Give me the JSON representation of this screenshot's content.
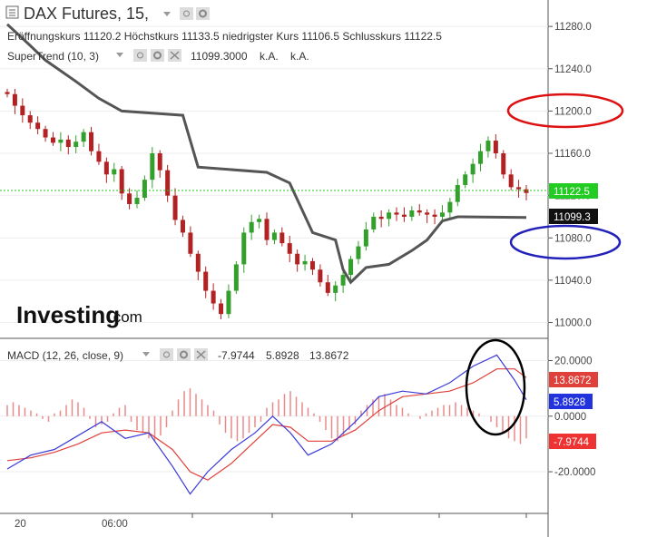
{
  "header": {
    "title": "DAX Futures, 15,",
    "ohlc_text": "Eröffnungskurs 11120.2  Höchstkurs 11133.5  niedrigster Kurs 11106.5  Schlusskurs 11122.5",
    "supertrend_label": "SuperTrend (10, 3)",
    "supertrend_value": "11099.3000",
    "supertrend_na1": "k.A.",
    "supertrend_na2": "k.A."
  },
  "logo": {
    "main": "Investing",
    "sub": ".com"
  },
  "macd_header": {
    "label": "MACD (12, 26, close, 9)",
    "value1": "-7.9744",
    "value2": "5.8928",
    "value3": "13.8672"
  },
  "tags": {
    "last_price": "11122.5",
    "supertrend": "11099.3",
    "signal": "13.8672",
    "macd": "5.8928",
    "hist": "-7.9744"
  },
  "colors": {
    "up": "#33a02c",
    "down": "#b22222",
    "supertrend": "#555555",
    "macd_line": "#3a3ad6",
    "signal_line": "#e0403a",
    "hist": "#e88a8a",
    "last_price_bg": "#22cc22",
    "supertrend_bg": "#111111",
    "ann_red": "#dd1111",
    "ann_blue": "#2222bb",
    "ann_black": "#000000"
  },
  "chart_data": [
    {
      "type": "candlestick",
      "title": "DAX Futures, 15",
      "ylim": [
        10985,
        11305
      ],
      "y_ticks": [
        "11000.0",
        "11040.0",
        "11080.0",
        "11120.0",
        "11160.0",
        "11200.0",
        "11240.0",
        "11280.0"
      ],
      "x_ticks": [
        "20",
        "06:00"
      ],
      "last_price": 11122.5,
      "price_path": [
        11216,
        11205,
        11196,
        11189,
        11183,
        11175,
        11170,
        11173,
        11166,
        11171,
        11180,
        11162,
        11152,
        11140,
        11145,
        11122,
        11112,
        11118,
        11135,
        11160,
        11144,
        11120,
        11097,
        11085,
        11065,
        11048,
        11030,
        11018,
        11008,
        11030,
        11055,
        11085,
        11095,
        11098,
        11078,
        11085,
        11075,
        11065,
        11055,
        11058,
        11050,
        11038,
        11028,
        11035,
        11045,
        11060,
        11072,
        11088,
        11100,
        11098,
        11104,
        11102,
        11100,
        11106,
        11104,
        11102,
        11100,
        11104,
        11114,
        11130,
        11140,
        11150,
        11162,
        11172,
        11160,
        11140,
        11128,
        11126,
        11122.5
      ],
      "series": [
        {
          "name": "SuperTrend (10, 3)",
          "points": [
            [
              0,
              11282
            ],
            [
              3,
              11262
            ],
            [
              5,
              11248
            ],
            [
              9,
              11228
            ],
            [
              12,
              11212
            ],
            [
              15,
              11200
            ],
            [
              23,
              11196
            ],
            [
              25,
              11147
            ],
            [
              34,
              11142
            ],
            [
              37,
              11132
            ],
            [
              40,
              11085
            ],
            [
              43,
              11078
            ],
            [
              44,
              11050
            ],
            [
              45,
              11038
            ],
            [
              47,
              11052
            ],
            [
              50,
              11055
            ],
            [
              53,
              11068
            ],
            [
              55,
              11078
            ],
            [
              57,
              11096
            ],
            [
              59,
              11100
            ],
            [
              68,
              11099.3
            ]
          ]
        }
      ]
    },
    {
      "type": "line",
      "title": "MACD (12, 26, close, 9)",
      "ylim": [
        -35,
        28
      ],
      "y_ticks": [
        "20.0000",
        "0.0000",
        "-20.0000"
      ],
      "series": [
        {
          "name": "MACD",
          "points": [
            [
              0,
              -19
            ],
            [
              4,
              -14
            ],
            [
              8,
              -12
            ],
            [
              12,
              -7
            ],
            [
              16,
              -2
            ],
            [
              20,
              -8
            ],
            [
              24,
              -6
            ],
            [
              28,
              -18
            ],
            [
              31,
              -28
            ],
            [
              34,
              -20
            ],
            [
              38,
              -12
            ],
            [
              42,
              -6
            ],
            [
              45,
              0
            ],
            [
              48,
              -6
            ],
            [
              51,
              -14
            ],
            [
              55,
              -10
            ],
            [
              59,
              -2
            ],
            [
              63,
              7
            ],
            [
              67,
              9
            ],
            [
              71,
              8
            ],
            [
              75,
              12
            ],
            [
              79,
              18
            ],
            [
              83,
              22
            ],
            [
              86,
              13
            ],
            [
              88,
              5.8928
            ]
          ]
        },
        {
          "name": "Signal",
          "points": [
            [
              0,
              -16
            ],
            [
              4,
              -15
            ],
            [
              8,
              -13
            ],
            [
              12,
              -10
            ],
            [
              16,
              -6
            ],
            [
              20,
              -5
            ],
            [
              24,
              -6
            ],
            [
              28,
              -12
            ],
            [
              31,
              -20
            ],
            [
              34,
              -23
            ],
            [
              38,
              -17
            ],
            [
              42,
              -9
            ],
            [
              45,
              -3
            ],
            [
              48,
              -4
            ],
            [
              51,
              -9
            ],
            [
              55,
              -9
            ],
            [
              59,
              -5
            ],
            [
              63,
              2
            ],
            [
              67,
              7
            ],
            [
              71,
              8
            ],
            [
              75,
              9
            ],
            [
              79,
              12
            ],
            [
              83,
              17
            ],
            [
              86,
              17
            ],
            [
              88,
              13.8672
            ]
          ]
        },
        {
          "name": "Histogram",
          "values": [
            4,
            5,
            4,
            3,
            2,
            1,
            -1,
            -2,
            1,
            2,
            4,
            6,
            5,
            3,
            -1,
            -4,
            -3,
            -2,
            1,
            3,
            4,
            -2,
            -5,
            -6,
            -8,
            -9,
            -7,
            -4,
            2,
            6,
            9,
            10,
            8,
            6,
            4,
            2,
            -3,
            -6,
            -8,
            -9,
            -8,
            -6,
            -4,
            -2,
            3,
            5,
            6,
            8,
            9,
            7,
            5,
            3,
            1,
            -2,
            -5,
            -8,
            -9,
            -7,
            -5,
            -3,
            2,
            4,
            6,
            7,
            8,
            6,
            4,
            3,
            1,
            0,
            -1,
            1,
            2,
            3,
            4,
            4,
            5,
            4,
            3,
            2,
            1,
            0,
            -2,
            -4,
            -6,
            -8,
            -9,
            -10,
            -8
          ]
        }
      ]
    }
  ]
}
